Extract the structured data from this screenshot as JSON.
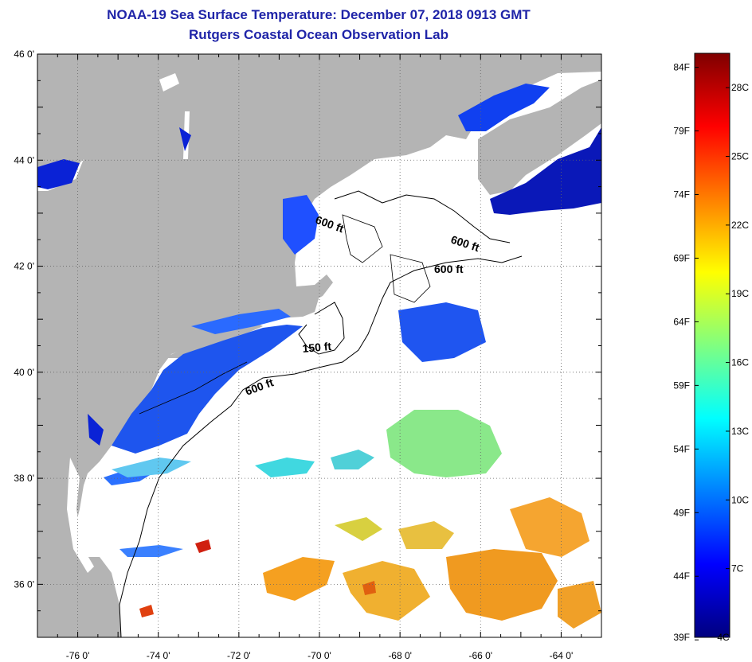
{
  "header": {
    "title": "NOAA-19 Sea Surface Temperature:  December 07, 2018 0913 GMT",
    "subtitle": "Rutgers Coastal Ocean Observation Lab"
  },
  "map": {
    "lat_ticks": [
      "46 0'",
      "44 0'",
      "42 0'",
      "40 0'",
      "38 0'",
      "36 0'"
    ],
    "lat_values": [
      46,
      44,
      42,
      40,
      38,
      36
    ],
    "lon_ticks": [
      "-76 0'",
      "-74 0'",
      "-72 0'",
      "-70 0'",
      "-68 0'",
      "-66 0'",
      "-64 0'"
    ],
    "lon_values": [
      -76,
      -74,
      -72,
      -70,
      -68,
      -66,
      -64
    ],
    "lat_range": [
      35,
      46
    ],
    "lon_range": [
      -77,
      -63
    ],
    "contour_labels": [
      "600 ft",
      "600 ft",
      "600 ft",
      "150 ft",
      "600 ft"
    ],
    "colors": {
      "land": "#b4b4b4",
      "ocean_nodata": "#ffffff",
      "grid": "#666666"
    }
  },
  "colorbar": {
    "fahrenheit": [
      "84F",
      "79F",
      "74F",
      "69F",
      "64F",
      "59F",
      "54F",
      "49F",
      "44F",
      "39F"
    ],
    "celsius": [
      "28C",
      "25C",
      "22C",
      "19C",
      "16C",
      "13C",
      "10C",
      "7C",
      "4C"
    ],
    "min_c": 4,
    "max_c": 29.5,
    "stops": [
      "#00007f",
      "#0000ff",
      "#0080ff",
      "#00ffff",
      "#80ff80",
      "#ffff00",
      "#ff8000",
      "#ff0000",
      "#7f0000"
    ]
  }
}
